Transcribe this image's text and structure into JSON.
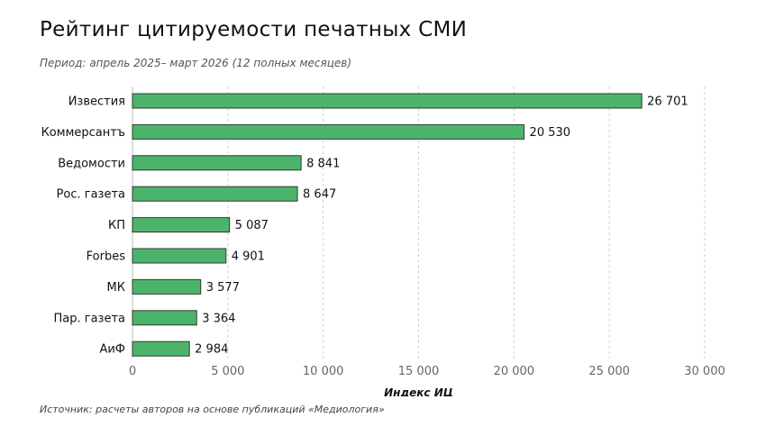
{
  "title": "Рейтинг цитируемости печатных СМИ",
  "subtitle": "Период: апрель 2025– март 2026 (12 полных месяцев)",
  "source": "Источник: расчеты авторов на основе публикаций «Медиология»",
  "chart_data": {
    "type": "bar",
    "orientation": "horizontal",
    "title": "Рейтинг цитируемости печатных СМИ",
    "subtitle": "Период: апрель 2025– март 2026 (12 полных месяцев)",
    "xlabel": "Индекс ИЦ",
    "ylabel": "",
    "categories": [
      "Известия",
      "Коммерсантъ",
      "Ведомости",
      "Рос. газета",
      "КП",
      "Forbes",
      "МК",
      "Пар. газета",
      "АиФ"
    ],
    "values": [
      26701,
      20530,
      8841,
      8647,
      5087,
      4901,
      3577,
      3364,
      2984
    ],
    "value_labels": [
      "26 701",
      "20 530",
      "8 841",
      "8 647",
      "5 087",
      "4 901",
      "3 577",
      "3 364",
      "2 984"
    ],
    "xlim": [
      0,
      30000
    ],
    "xticks": [
      0,
      5000,
      10000,
      15000,
      20000,
      25000,
      30000
    ],
    "xtick_labels": [
      "0",
      "5 000",
      "10 000",
      "15 000",
      "20 000",
      "25 000",
      "30 000"
    ],
    "grid": "vertical-dashed",
    "bar_color": "#4cb46a",
    "bar_edge_color": "#2f3a33"
  }
}
